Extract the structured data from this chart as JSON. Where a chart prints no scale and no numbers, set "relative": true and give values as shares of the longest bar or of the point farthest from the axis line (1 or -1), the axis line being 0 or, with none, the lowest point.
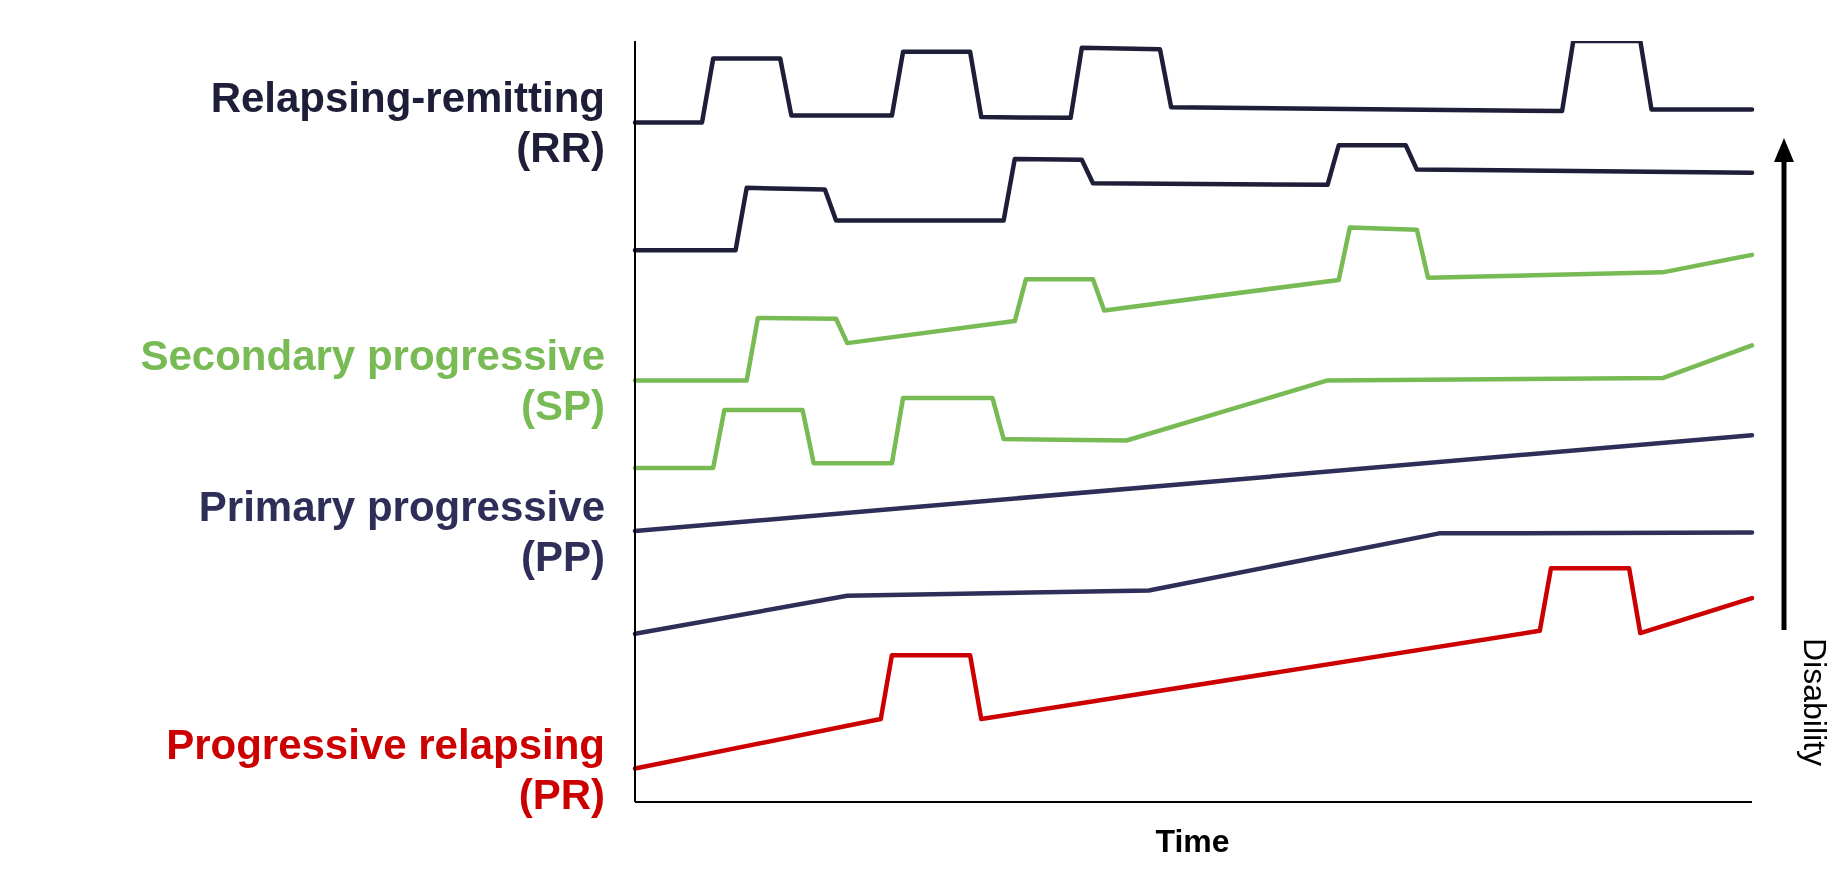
{
  "chart_data": {
    "type": "line",
    "relative": true,
    "xlabel": "Time",
    "ylabel": "Disability",
    "categories": [
      null,
      null,
      null,
      null,
      null,
      null,
      null,
      null,
      null,
      null,
      null,
      null,
      null,
      null,
      null,
      null,
      null,
      null,
      null,
      null,
      null,
      null,
      null,
      null,
      null,
      null,
      null,
      null,
      null,
      null,
      null,
      null,
      null,
      null,
      null,
      null,
      null,
      null,
      null,
      null,
      null,
      null,
      null,
      null,
      null,
      null,
      null,
      null,
      null,
      null,
      null,
      null,
      null,
      null,
      null,
      null,
      null,
      null,
      null,
      null,
      null,
      null,
      null,
      null,
      null,
      null,
      null,
      null,
      null,
      null,
      null,
      null,
      null,
      null,
      null,
      null,
      null,
      null,
      null,
      null,
      null,
      null,
      null,
      null,
      null,
      null,
      null,
      null,
      null,
      null,
      null,
      null,
      null,
      null,
      null,
      null,
      null,
      null,
      null,
      null,
      null
    ],
    "series": [
      {
        "name": "Relapsing-remitting (RR)",
        "color": "#1e1e38",
        "values": [
          0.893,
          null,
          null,
          null,
          null,
          null,
          0.893,
          0.977,
          null,
          null,
          null,
          null,
          null,
          0.977,
          0.902,
          null,
          null,
          null,
          null,
          null,
          null,
          null,
          null,
          0.902,
          0.986,
          null,
          null,
          null,
          null,
          null,
          0.986,
          0.9,
          null,
          null,
          null,
          null,
          null,
          null,
          null,
          0.899,
          0.991,
          null,
          null,
          null,
          null,
          null,
          null,
          0.989,
          0.913,
          null,
          null,
          null,
          null,
          null,
          null,
          null,
          null,
          null,
          null,
          null,
          null,
          null,
          null,
          null,
          null,
          null,
          null,
          null,
          null,
          null,
          null,
          null,
          null,
          null,
          null,
          null,
          null,
          null,
          null,
          null,
          null,
          null,
          null,
          0.908,
          1,
          null,
          null,
          null,
          null,
          null,
          1,
          0.91,
          null,
          null,
          null,
          null,
          null,
          null,
          null,
          null,
          0.91
        ]
      },
      {
        "color": "#1e1e38",
        "values": [
          0.725,
          null,
          null,
          null,
          null,
          null,
          null,
          null,
          null,
          0.725,
          0.807,
          null,
          null,
          null,
          null,
          null,
          null,
          0.805,
          0.764,
          null,
          null,
          null,
          null,
          null,
          null,
          null,
          null,
          null,
          null,
          null,
          null,
          null,
          null,
          0.764,
          0.845,
          null,
          null,
          null,
          null,
          null,
          0.844,
          0.813,
          null,
          null,
          null,
          null,
          null,
          null,
          null,
          null,
          null,
          null,
          null,
          null,
          null,
          null,
          null,
          null,
          null,
          null,
          null,
          null,
          0.811,
          0.863,
          null,
          null,
          null,
          null,
          null,
          0.863,
          0.831,
          null,
          null,
          null,
          null,
          null,
          null,
          null,
          null,
          null,
          null,
          null,
          null,
          null,
          null,
          null,
          null,
          null,
          null,
          null,
          null,
          null,
          null,
          null,
          null,
          null,
          null,
          null,
          null,
          null,
          0.827
        ]
      },
      {
        "name": "Secondary progressive (SP)",
        "color": "#78bb55",
        "values": [
          0.554,
          null,
          null,
          null,
          null,
          null,
          null,
          null,
          null,
          null,
          0.554,
          0.636,
          null,
          null,
          null,
          null,
          null,
          null,
          0.635,
          0.603,
          null,
          null,
          null,
          null,
          null,
          null,
          null,
          null,
          null,
          null,
          null,
          null,
          null,
          null,
          0.632,
          0.687,
          null,
          null,
          null,
          null,
          null,
          0.687,
          0.646,
          null,
          null,
          null,
          null,
          null,
          null,
          null,
          null,
          null,
          null,
          null,
          null,
          null,
          null,
          null,
          null,
          null,
          null,
          null,
          null,
          0.686,
          0.755,
          null,
          null,
          null,
          null,
          null,
          0.752,
          0.689,
          null,
          null,
          null,
          null,
          null,
          null,
          null,
          null,
          null,
          null,
          null,
          null,
          null,
          null,
          null,
          null,
          null,
          null,
          null,
          null,
          0.696,
          null,
          null,
          null,
          null,
          null,
          null,
          null,
          0.719
        ]
      },
      {
        "color": "#78bb55",
        "values": [
          0.439,
          null,
          null,
          null,
          null,
          null,
          null,
          0.439,
          0.515,
          null,
          null,
          null,
          null,
          null,
          null,
          0.515,
          0.445,
          null,
          null,
          null,
          null,
          null,
          null,
          0.445,
          0.531,
          null,
          null,
          null,
          null,
          null,
          null,
          null,
          0.531,
          0.477,
          null,
          null,
          null,
          null,
          null,
          null,
          null,
          null,
          null,
          null,
          0.475,
          null,
          null,
          null,
          null,
          null,
          null,
          null,
          null,
          null,
          null,
          null,
          null,
          null,
          null,
          null,
          null,
          null,
          0.554,
          null,
          null,
          null,
          null,
          null,
          null,
          null,
          null,
          null,
          null,
          null,
          null,
          null,
          null,
          null,
          null,
          null,
          null,
          null,
          null,
          null,
          null,
          null,
          null,
          null,
          null,
          null,
          null,
          null,
          0.557,
          null,
          null,
          null,
          null,
          null,
          null,
          null,
          0.6
        ]
      },
      {
        "name": "Primary progressive (PP)",
        "color": "#2e2e58",
        "values": [
          0.356,
          null,
          null,
          null,
          null,
          null,
          null,
          null,
          null,
          null,
          null,
          null,
          null,
          null,
          null,
          null,
          null,
          null,
          null,
          null,
          null,
          null,
          null,
          null,
          null,
          null,
          null,
          null,
          null,
          null,
          null,
          null,
          null,
          null,
          null,
          null,
          null,
          null,
          null,
          null,
          null,
          null,
          null,
          null,
          null,
          null,
          null,
          null,
          null,
          null,
          null,
          null,
          null,
          null,
          null,
          null,
          null,
          null,
          null,
          null,
          null,
          null,
          null,
          null,
          null,
          null,
          null,
          null,
          null,
          null,
          null,
          null,
          null,
          null,
          null,
          null,
          null,
          null,
          null,
          null,
          null,
          null,
          null,
          null,
          null,
          null,
          null,
          null,
          null,
          null,
          null,
          null,
          null,
          null,
          null,
          null,
          null,
          null,
          null,
          null,
          0.482
        ]
      },
      {
        "color": "#2e2e58",
        "values": [
          0.221,
          null,
          null,
          null,
          null,
          null,
          null,
          null,
          null,
          null,
          null,
          null,
          null,
          null,
          null,
          null,
          null,
          null,
          null,
          0.271,
          null,
          null,
          null,
          null,
          null,
          null,
          null,
          null,
          null,
          null,
          null,
          null,
          null,
          null,
          null,
          null,
          null,
          null,
          null,
          null,
          null,
          null,
          null,
          null,
          null,
          null,
          0.278,
          null,
          null,
          null,
          null,
          null,
          null,
          null,
          null,
          null,
          null,
          null,
          null,
          null,
          null,
          null,
          null,
          null,
          null,
          null,
          null,
          null,
          null,
          null,
          null,
          null,
          0.353,
          null,
          null,
          null,
          null,
          null,
          null,
          null,
          null,
          null,
          null,
          null,
          null,
          null,
          null,
          null,
          null,
          null,
          null,
          null,
          null,
          null,
          null,
          null,
          null,
          null,
          null,
          null,
          0.354
        ]
      },
      {
        "name": "Progressive relapsing (PR)",
        "color": "#cc0000",
        "values": [
          0.044,
          null,
          null,
          null,
          null,
          null,
          null,
          null,
          null,
          null,
          null,
          null,
          null,
          null,
          null,
          null,
          null,
          null,
          null,
          null,
          null,
          null,
          0.109,
          0.193,
          null,
          null,
          null,
          null,
          null,
          null,
          0.193,
          0.109,
          null,
          null,
          null,
          null,
          null,
          null,
          null,
          null,
          null,
          null,
          null,
          null,
          null,
          null,
          null,
          null,
          null,
          null,
          null,
          null,
          null,
          null,
          null,
          null,
          null,
          null,
          null,
          null,
          null,
          null,
          null,
          null,
          null,
          null,
          null,
          null,
          null,
          null,
          null,
          null,
          null,
          null,
          null,
          null,
          null,
          null,
          null,
          null,
          null,
          0.225,
          0.307,
          null,
          null,
          null,
          null,
          null,
          null,
          0.307,
          0.222,
          null,
          null,
          null,
          null,
          null,
          null,
          null,
          null,
          null,
          0.268
        ]
      }
    ]
  }
}
